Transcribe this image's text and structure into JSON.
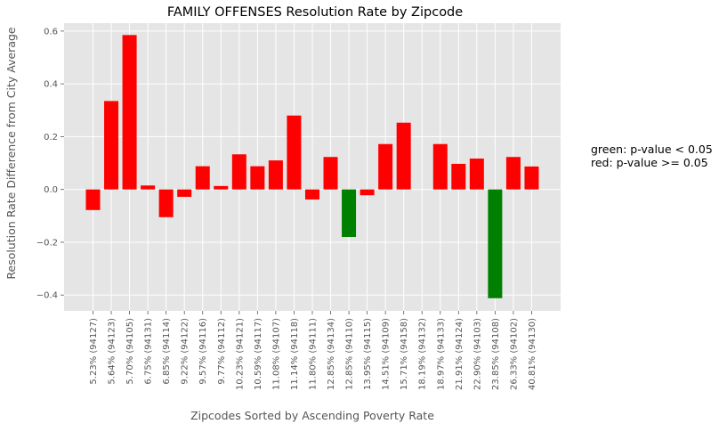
{
  "chart_data": {
    "type": "bar",
    "title": "FAMILY OFFENSES Resolution Rate by Zipcode",
    "xlabel": "Zipcodes Sorted by Ascending Poverty Rate",
    "ylabel": "Resolution Rate Difference from City Average",
    "ylim": [
      -0.46,
      0.63
    ],
    "yticks": [
      -0.4,
      -0.2,
      0.0,
      0.2,
      0.4,
      0.6
    ],
    "ytick_labels": [
      "−0.4",
      "−0.2",
      "0.0",
      "0.2",
      "0.4",
      "0.6"
    ],
    "grid": true,
    "categories": [
      "5.23% (94127)",
      "5.64% (94123)",
      "5.70% (94105)",
      "6.75% (94131)",
      "6.85% (94114)",
      "9.22% (94122)",
      "9.57% (94116)",
      "9.77% (94112)",
      "10.23% (94121)",
      "10.59% (94117)",
      "11.08% (94107)",
      "11.14% (94118)",
      "11.80% (94111)",
      "12.85% (94134)",
      "12.85% (94110)",
      "13.95% (94115)",
      "14.51% (94109)",
      "15.71% (94158)",
      "18.19% (94132)",
      "18.97% (94133)",
      "21.91% (94124)",
      "22.90% (94103)",
      "23.85% (94108)",
      "26.33% (94102)",
      "40.81% (94130)"
    ],
    "values": [
      -0.078,
      0.335,
      0.585,
      0.015,
      -0.105,
      -0.028,
      0.088,
      0.013,
      0.133,
      0.088,
      0.11,
      0.28,
      -0.038,
      0.123,
      -0.18,
      -0.022,
      0.172,
      0.253,
      0.0,
      0.172,
      0.097,
      0.117,
      -0.412,
      0.123,
      0.087
    ],
    "significant": [
      false,
      false,
      false,
      false,
      false,
      false,
      false,
      false,
      false,
      false,
      false,
      false,
      false,
      false,
      true,
      false,
      false,
      false,
      false,
      false,
      false,
      false,
      true,
      false,
      false
    ],
    "colors": {
      "significant": "#008000",
      "not_significant": "#ff0000",
      "plot_bg": "#e5e5e5",
      "grid": "#ffffff"
    },
    "annotations": [
      "green: p-value < 0.05",
      "red: p-value >= 0.05"
    ]
  }
}
